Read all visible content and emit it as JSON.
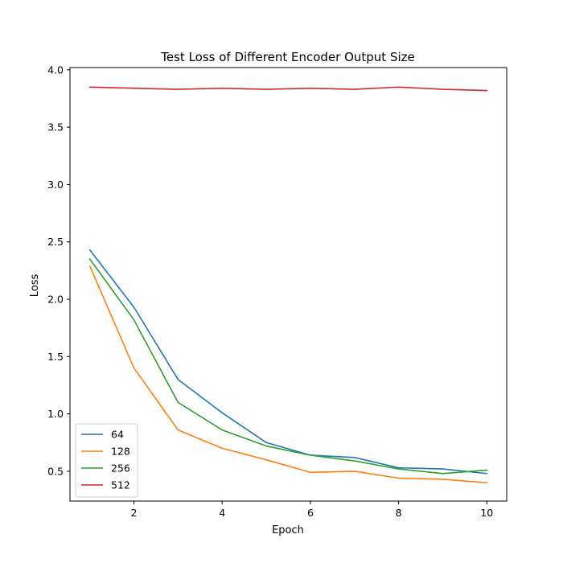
{
  "chart_data": {
    "type": "line",
    "title": "Test Loss of Different Encoder Output Size",
    "xlabel": "Epoch",
    "ylabel": "Loss",
    "xlim": [
      0.55,
      10.45
    ],
    "ylim": [
      0.24,
      4.02
    ],
    "x_ticks": [
      2,
      4,
      6,
      8,
      10
    ],
    "y_ticks": [
      0.5,
      1.0,
      1.5,
      2.0,
      2.5,
      3.0,
      3.5,
      4.0
    ],
    "y_tick_labels": [
      "0.5",
      "1.0",
      "1.5",
      "2.0",
      "2.5",
      "3.0",
      "3.5",
      "4.0"
    ],
    "grid": false,
    "legend_position": "lower-left",
    "x": [
      1,
      2,
      3,
      4,
      5,
      6,
      7,
      8,
      9,
      10
    ],
    "series": [
      {
        "name": "64",
        "color": "#1f77b4",
        "values": [
          2.43,
          1.93,
          1.3,
          1.01,
          0.75,
          0.64,
          0.62,
          0.53,
          0.52,
          0.48
        ]
      },
      {
        "name": "128",
        "color": "#ff7f0e",
        "values": [
          2.29,
          1.4,
          0.86,
          0.7,
          0.6,
          0.49,
          0.5,
          0.44,
          0.43,
          0.4
        ]
      },
      {
        "name": "256",
        "color": "#2ca02c",
        "values": [
          2.35,
          1.82,
          1.1,
          0.86,
          0.72,
          0.64,
          0.59,
          0.52,
          0.48,
          0.51
        ]
      },
      {
        "name": "512",
        "color": "#d62728",
        "values": [
          3.85,
          3.84,
          3.83,
          3.84,
          3.83,
          3.84,
          3.83,
          3.85,
          3.83,
          3.82
        ]
      }
    ]
  }
}
